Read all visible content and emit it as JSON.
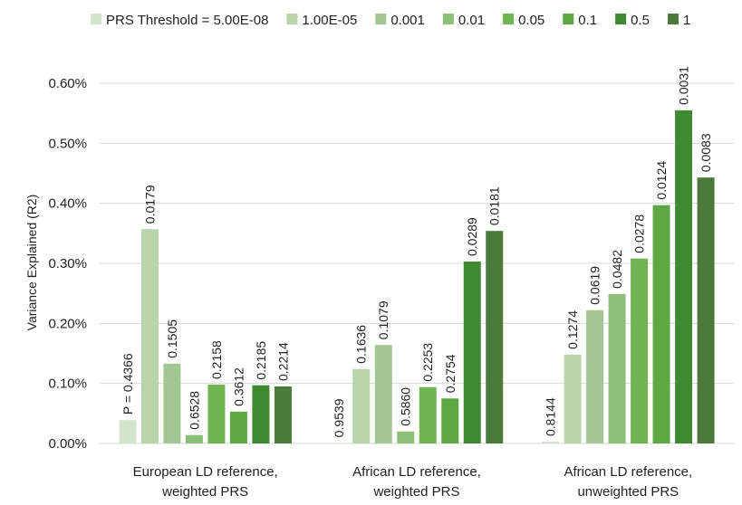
{
  "chart_data": {
    "type": "bar",
    "y_label": "Variance Explained  (R2)",
    "categories": [
      [
        "European LD reference,",
        "weighted PRS"
      ],
      [
        "African LD reference,",
        "weighted PRS"
      ],
      [
        "African LD reference,",
        "unweighted PRS"
      ]
    ],
    "ylim": [
      0,
      0.6
    ],
    "yticks": [
      {
        "value": 0,
        "label": "0.00%"
      },
      {
        "value": 0.1,
        "label": "0.10%"
      },
      {
        "value": 0.2,
        "label": "0.20%"
      },
      {
        "value": 0.3,
        "label": "0.30%"
      },
      {
        "value": 0.4,
        "label": "0.40%"
      },
      {
        "value": 0.5,
        "label": "0.50%"
      },
      {
        "value": 0.6,
        "label": "0.60%"
      }
    ],
    "grid": true,
    "legend": "top",
    "series": [
      {
        "name": "PRS Threshold = 5.00E-08",
        "color": "#d4e4cc",
        "values": [
          0.039,
          0.001,
          0.003
        ],
        "p_labels": [
          "P = 0.4366",
          "0.9539",
          "0.8144"
        ]
      },
      {
        "name": "1.00E-05",
        "color": "#b7d4aa",
        "values": [
          0.357,
          0.124,
          0.148
        ],
        "p_labels": [
          "0.0179",
          "0.1636",
          "0.1274"
        ]
      },
      {
        "name": "0.001",
        "color": "#a2c792",
        "values": [
          0.133,
          0.164,
          0.222
        ],
        "p_labels": [
          "0.1505",
          "0.1079",
          "0.0619"
        ]
      },
      {
        "name": "0.01",
        "color": "#8cbf78",
        "values": [
          0.014,
          0.02,
          0.249
        ],
        "p_labels": [
          "0.6528",
          "0.5860",
          "0.0482"
        ]
      },
      {
        "name": "0.05",
        "color": "#70b454",
        "values": [
          0.098,
          0.094,
          0.308
        ],
        "p_labels": [
          "0.2158",
          "0.2253",
          "0.0278"
        ]
      },
      {
        "name": "0.1",
        "color": "#5ea745",
        "values": [
          0.053,
          0.075,
          0.397
        ],
        "p_labels": [
          "0.3612",
          "0.2754",
          "0.0124"
        ]
      },
      {
        "name": "0.5",
        "color": "#3f8a30",
        "values": [
          0.097,
          0.303,
          0.555
        ],
        "p_labels": [
          "0.2185",
          "0.0289",
          "0.0031"
        ]
      },
      {
        "name": "1",
        "color": "#4b7a3b",
        "values": [
          0.095,
          0.354,
          0.443
        ],
        "p_labels": [
          "0.2214",
          "0.0181",
          "0.0083"
        ]
      }
    ]
  }
}
